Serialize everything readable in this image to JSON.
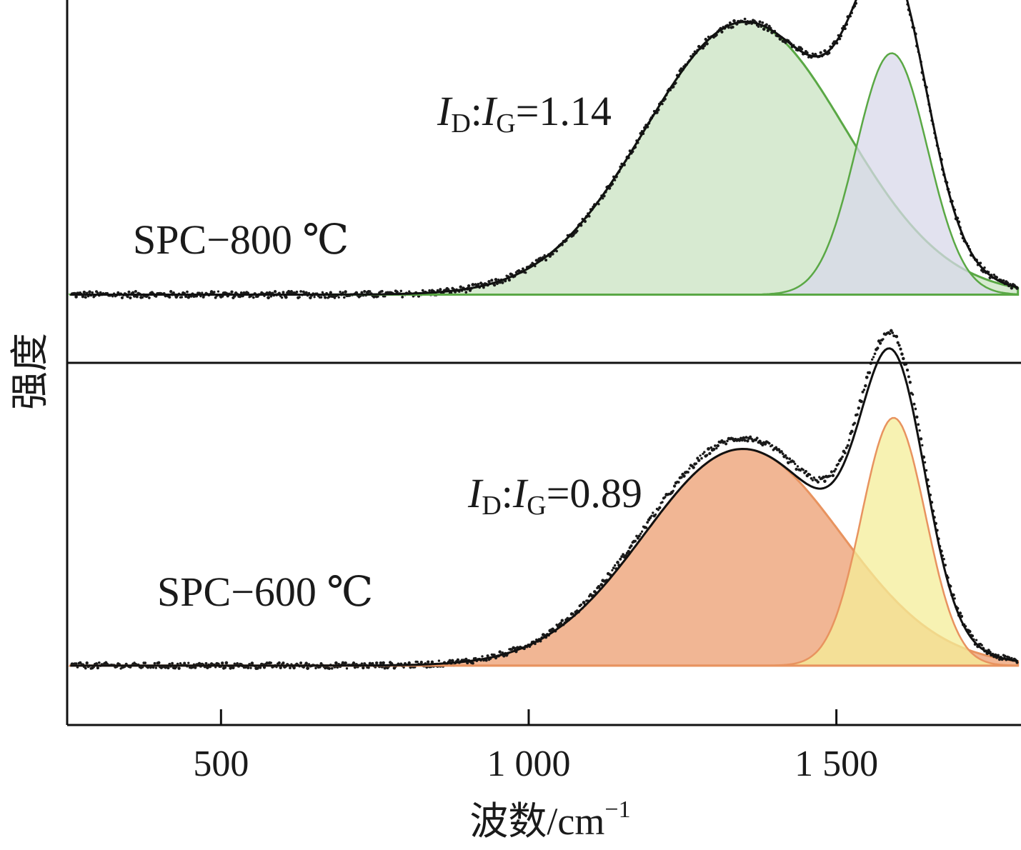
{
  "chart_data": {
    "type": "line",
    "xlabel": "波数/cm",
    "xlabel_sup": "−1",
    "ylabel": "强度",
    "xlim": [
      250,
      1800
    ],
    "x_ticks": [
      {
        "value": 500,
        "label": "500"
      },
      {
        "value": 1000,
        "label": "1 000"
      },
      {
        "value": 1500,
        "label": "1 500"
      }
    ],
    "grid": false,
    "panels": [
      {
        "label": "SPC−800 ℃",
        "ratio": {
          "i1": "I",
          "s1": "D",
          "i2": "I",
          "s2": "G",
          "value": "=1.14"
        },
        "baseline": 0.0,
        "ylim": [
          -0.25,
          1.08
        ],
        "d_band": {
          "center": 1352,
          "height": 1.0,
          "width": 163,
          "fill": "#d3e8cc",
          "stroke": "#5aa845"
        },
        "g_band": {
          "center": 1590,
          "height": 0.885,
          "width": 58,
          "fill": "#d8d8ea",
          "stroke": "#5aa845"
        },
        "fit_color": "#111111",
        "data_noise": 0.012,
        "data_scale": 1.0,
        "show_raw_data": true
      },
      {
        "label": "SPC−600 ℃",
        "ratio": {
          "i1": "I",
          "s1": "D",
          "i2": "I",
          "s2": "G",
          "value": "=0.89"
        },
        "baseline": 0.0,
        "ylim": [
          -0.2,
          1.02
        ],
        "d_band": {
          "center": 1348,
          "height": 0.73,
          "width": 160,
          "fill": "#f0ae88",
          "stroke": "#e8935f"
        },
        "g_band": {
          "center": 1593,
          "height": 0.835,
          "width": 52,
          "fill": "#f4ee98",
          "stroke": "#e8935f"
        },
        "fit_color": "#111111",
        "data_noise": 0.01,
        "data_scale": 1.05,
        "show_raw_data": true
      }
    ]
  }
}
